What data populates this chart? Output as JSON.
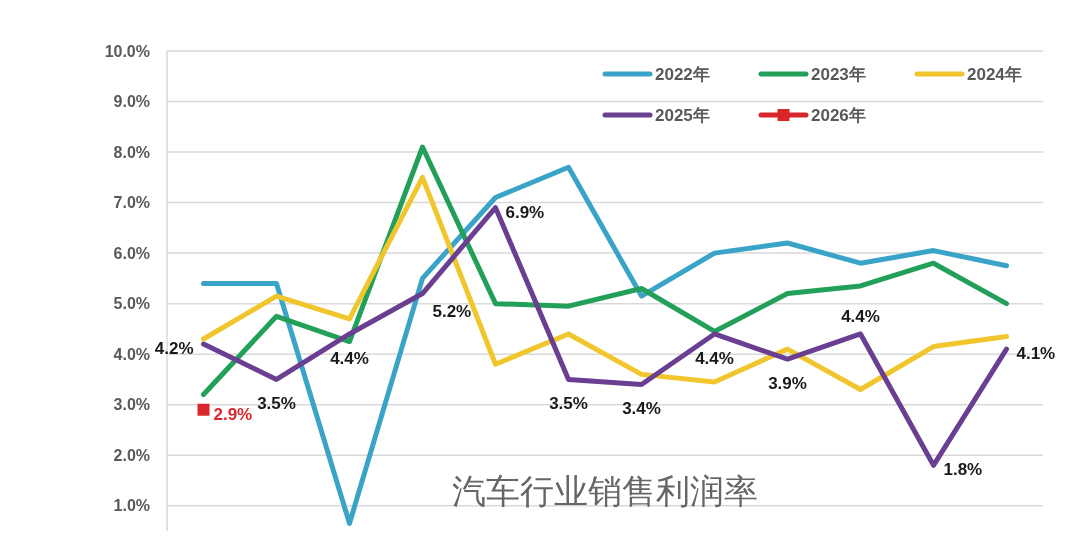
{
  "chart_data": {
    "type": "line",
    "title": "汽车行业销售利润率",
    "categories": [
      null,
      null,
      null,
      null,
      null,
      null,
      null,
      null,
      null,
      null,
      null,
      null
    ],
    "series": [
      {
        "name": "2022年",
        "color": "#3aa3c8",
        "values": [
          5.4,
          5.4,
          0.65,
          5.5,
          7.1,
          7.7,
          5.15,
          6.0,
          6.2,
          5.8,
          6.05,
          5.75
        ]
      },
      {
        "name": "2023年",
        "color": "#22a05a",
        "values": [
          3.2,
          4.75,
          4.25,
          8.1,
          5.0,
          4.95,
          5.3,
          4.45,
          5.2,
          5.35,
          5.8,
          5.0
        ]
      },
      {
        "name": "2024年",
        "color": "#f0c62c",
        "values": [
          4.3,
          5.15,
          4.7,
          7.5,
          3.8,
          4.4,
          3.6,
          3.45,
          4.1,
          3.3,
          4.15,
          4.35
        ]
      },
      {
        "name": "2025年",
        "color": "#6a3e91",
        "values": [
          4.2,
          3.5,
          4.4,
          5.2,
          6.9,
          3.5,
          3.4,
          4.4,
          3.9,
          4.4,
          1.8,
          4.1
        ],
        "value_labels": [
          "4.2%",
          "3.5%",
          "4.4%",
          "5.2%",
          "6.9%",
          "3.5%",
          "3.4%",
          "4.4%",
          "3.9%",
          "4.4%",
          "1.8%",
          "4.1%"
        ]
      },
      {
        "name": "2026年",
        "color": "#d9262a",
        "marker": "square",
        "values": [
          2.9,
          null,
          null,
          null,
          null,
          null,
          null,
          null,
          null,
          null,
          null,
          null
        ],
        "value_labels": [
          "2.9%",
          null,
          null,
          null,
          null,
          null,
          null,
          null,
          null,
          null,
          null,
          null
        ]
      }
    ],
    "ylim": [
      0.5,
      10
    ],
    "yticks": [
      {
        "value": 1,
        "label": "1.0%"
      },
      {
        "value": 2,
        "label": "2.0%"
      },
      {
        "value": 3,
        "label": "3.0%"
      },
      {
        "value": 4,
        "label": "4.0%"
      },
      {
        "value": 5,
        "label": "5.0%"
      },
      {
        "value": 6,
        "label": "6.0%"
      },
      {
        "value": 7,
        "label": "7.0%"
      },
      {
        "value": 8,
        "label": "8.0%"
      },
      {
        "value": 9,
        "label": "9.0%"
      },
      {
        "value": 10,
        "label": "10.0%"
      }
    ],
    "grid": "y",
    "legend": "top right"
  }
}
